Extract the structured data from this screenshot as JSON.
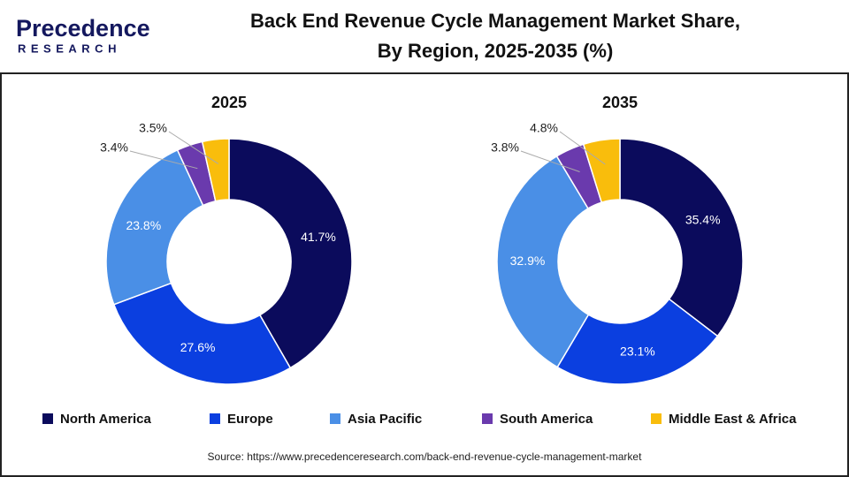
{
  "logo": {
    "name": "Precedence",
    "tagline": "RESEARCH"
  },
  "title": [
    "Back End Revenue Cycle Management Market Share,",
    "By Region, 2025-2035 (%)"
  ],
  "source": "Source: https://www.precedenceresearch.com/back-end-revenue-cycle-management-market",
  "chart_data": [
    {
      "type": "donut",
      "title": "2025",
      "categories": [
        "North America",
        "Europe",
        "Asia Pacific",
        "South America",
        "Middle East & Africa"
      ],
      "values": [
        41.7,
        27.6,
        23.8,
        3.4,
        3.5
      ],
      "value_labels": [
        "41.7%",
        "27.6%",
        "23.8%",
        "3.4%",
        "3.5%"
      ],
      "colors": [
        "#0b0b5c",
        "#0b3fe0",
        "#4a8fe6",
        "#6a3aad",
        "#f9bd0c"
      ]
    },
    {
      "type": "donut",
      "title": "2035",
      "categories": [
        "North America",
        "Europe",
        "Asia Pacific",
        "South America",
        "Middle East & Africa"
      ],
      "values": [
        35.4,
        23.1,
        32.9,
        3.8,
        4.8
      ],
      "value_labels": [
        "35.4%",
        "23.1%",
        "32.9%",
        "3.8%",
        "4.8%"
      ],
      "colors": [
        "#0b0b5c",
        "#0b3fe0",
        "#4a8fe6",
        "#6a3aad",
        "#f9bd0c"
      ]
    }
  ]
}
